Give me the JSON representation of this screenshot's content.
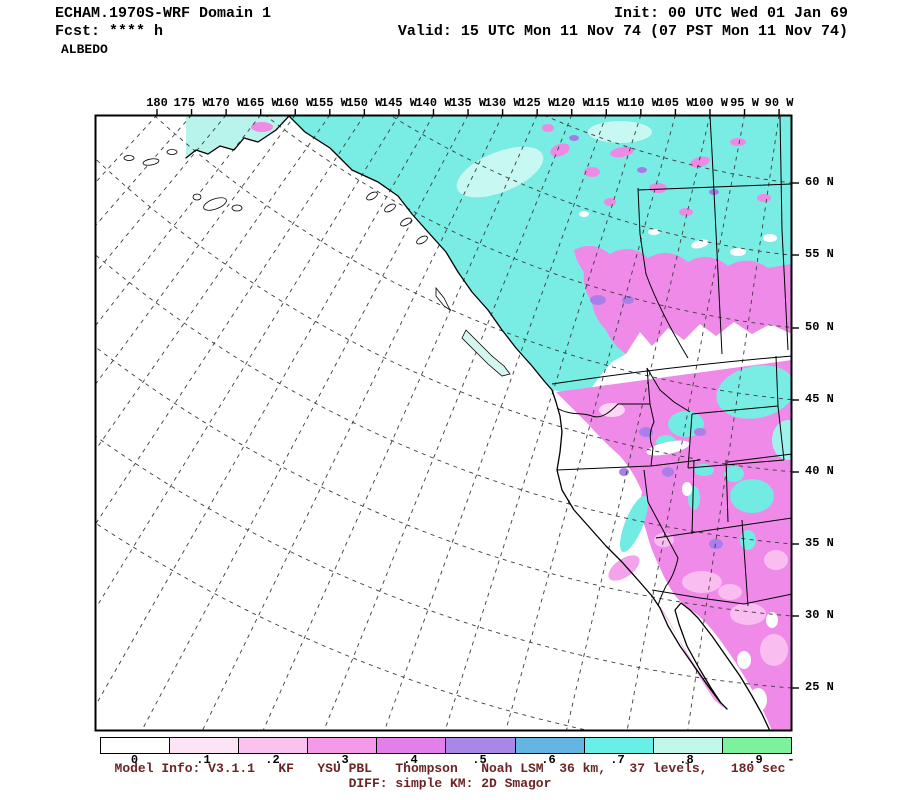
{
  "header": {
    "left_line1": "ECHAM.1970S-WRF Domain 1",
    "left_line2": "Fcst: **** h",
    "left_line3": "ALBEDO",
    "right_line1": "Init: 00 UTC Wed 01 Jan 69",
    "right_line2": "Valid: 15 UTC Mon 11 Nov 74 (07 PST Mon 11 Nov 74)"
  },
  "map": {
    "lon_labels": [
      "180",
      "175 W",
      "170 W",
      "165 W",
      "160 W",
      "155 W",
      "150 W",
      "145 W",
      "140 W",
      "135 W",
      "130 W",
      "125 W",
      "120 W",
      "115 W",
      "110 W",
      "105 W",
      "100 W",
      "95 W",
      "90 W"
    ],
    "lat_labels": [
      "60 N",
      "55 N",
      "50 N",
      "45 N",
      "40 N",
      "35 N",
      "30 N",
      "25 N"
    ]
  },
  "colorbar": {
    "tick_labels": [
      "0",
      ".1",
      ".2",
      ".3",
      ".4",
      ".5",
      ".6",
      ".7",
      ".8",
      ".9",
      "-"
    ],
    "colors": [
      "#ffffff",
      "#fce4f6",
      "#fac2ee",
      "#f59ae9",
      "#e37fe9",
      "#a887e9",
      "#64b5e2",
      "#68efe7",
      "#c2f8e9",
      "#7df29d"
    ]
  },
  "footer": {
    "line1": "Model Info: V3.1.1   KF   YSU PBL   Thompson   Noah LSM  36 km,   37 levels,   180 sec",
    "line2": "DIFF: simple KM: 2D Smagor"
  },
  "chart_data": {
    "type": "heatmap",
    "title": "ALBEDO",
    "model": "ECHAM.1970S-WRF Domain 1",
    "forecast_hour": "**** h",
    "init": "00 UTC Wed 01 Jan 69",
    "valid": "15 UTC Mon 11 Nov 74 (07 PST Mon 11 Nov 74)",
    "x_tick_labels": [
      "180",
      "175 W",
      "170 W",
      "165 W",
      "160 W",
      "155 W",
      "150 W",
      "145 W",
      "140 W",
      "135 W",
      "130 W",
      "125 W",
      "120 W",
      "115 W",
      "110 W",
      "105 W",
      "100 W",
      "95 W",
      "90 W"
    ],
    "y_tick_labels": [
      "60 N",
      "55 N",
      "50 N",
      "45 N",
      "40 N",
      "35 N",
      "30 N",
      "25 N"
    ],
    "colorbar_levels": [
      0,
      0.1,
      0.2,
      0.3,
      0.4,
      0.5,
      0.6,
      0.7,
      0.8,
      0.9
    ],
    "colorbar_colors": [
      "#ffffff",
      "#fce4f6",
      "#fac2ee",
      "#f59ae9",
      "#e37fe9",
      "#a887e9",
      "#64b5e2",
      "#68efe7",
      "#c2f8e9",
      "#7df29d"
    ],
    "grid": "5 degree lat/lon graticule, dashed",
    "regions": [
      {
        "area": "Alaska and northern/central Canada",
        "albedo": "0.6-0.8 (cyan)"
      },
      {
        "area": "BC interior, Canadian Prairies belt",
        "albedo": "0.3-0.5 (magenta/violet band)"
      },
      {
        "area": "US Rockies, Great Basin, Southwest, Mexico interior",
        "albedo": "0.2-0.4 (pink/magenta) with 0.6-0.7 (cyan) patches over high ranges"
      },
      {
        "area": "Pacific Ocean and coastal lowlands / California valley",
        "albedo": "below 0.1 (unshaded white)"
      }
    ]
  }
}
